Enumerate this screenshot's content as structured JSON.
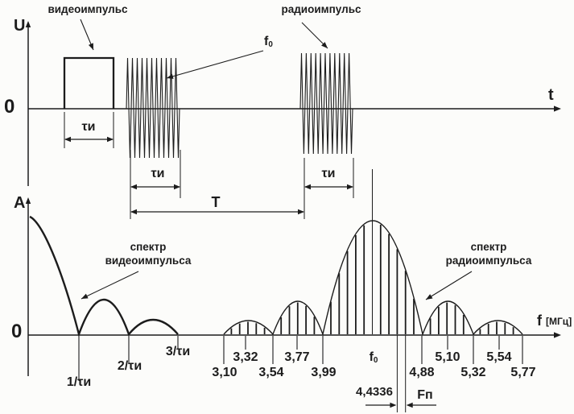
{
  "colors": {
    "ink": "#1c1c1c",
    "paper": "#fcfcfa"
  },
  "top_panel": {
    "y_axis": "U",
    "x_axis": "t",
    "zero": "0",
    "video_pulse_label": "видеоимпульс",
    "radio_pulse_label": "радиоимпульс",
    "carrier": {
      "base": "f",
      "sub": "0"
    },
    "tau": "τи",
    "period": "T"
  },
  "bottom_panel": {
    "y_axis": "A",
    "x_axis": "f",
    "x_axis_units": "[МГц]",
    "zero": "0",
    "video_spectrum_caption": {
      "line1": "спектр",
      "line2": "видеоимпульса"
    },
    "radio_spectrum_caption": {
      "line1": "спектр",
      "line2": "радиоимпульса"
    },
    "video_zero_ticks": [
      "1/τи",
      "2/τи",
      "3/τи"
    ],
    "carrier": {
      "base": "f",
      "sub": "0"
    },
    "upper_ticks": [
      "3,32",
      "3,77",
      "5,10",
      "5,54"
    ],
    "lower_ticks": [
      "3,10",
      "3,54",
      "3,99",
      "4,88",
      "5,32",
      "5,77"
    ],
    "marked_line_value": "4,4336",
    "rep_freq_label": "Fп"
  },
  "chart_data": [
    {
      "type": "line",
      "panel": "time-domain",
      "xlabel": "t",
      "ylabel": "U",
      "series": [
        {
          "name": "видеоимпульс",
          "shape": "rectangular pulse",
          "duration": "τи",
          "amplitude": 1
        },
        {
          "name": "радиоимпульс 1",
          "shape": "carrier burst",
          "carrier": "f0",
          "duration": "τи",
          "amplitude": 1
        },
        {
          "name": "радиоимпульс 2",
          "shape": "carrier burst",
          "carrier": "f0",
          "duration": "τи",
          "start_offset_from_pulse_1": "T"
        }
      ]
    },
    {
      "type": "area",
      "panel": "frequency-domain",
      "xlabel": "f [МГц]",
      "ylabel": "A",
      "video_spectrum": {
        "shape": "sinc envelope",
        "zeros": [
          "1/τи",
          "2/τи",
          "3/τи"
        ],
        "main_peak_relative": 1.0,
        "sidelobe_peaks_relative": [
          0.3,
          0.13
        ]
      },
      "radio_spectrum": {
        "shape": "discrete spectral lines under sinc envelope centered at f0",
        "zeros_mhz": [
          3.1,
          3.54,
          3.99,
          4.88,
          5.32,
          5.77
        ],
        "sidelobe_peak_freqs_mhz": [
          3.32,
          3.77,
          5.1,
          5.54
        ],
        "center_label": "f0",
        "marked_line_mhz": 4.4336,
        "line_spacing_label": "Fп"
      }
    }
  ]
}
